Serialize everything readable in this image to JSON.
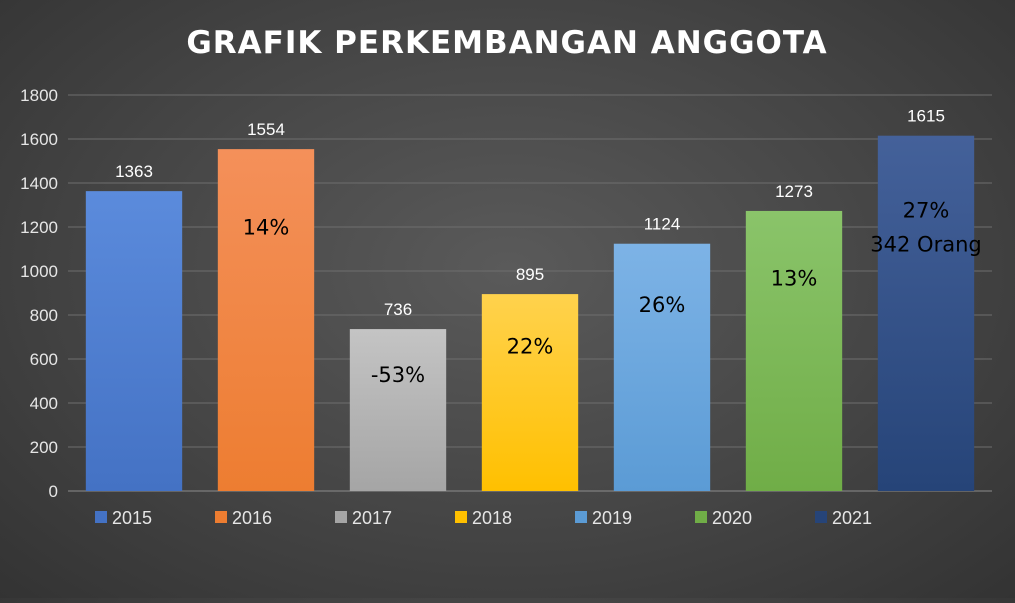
{
  "chart_data": {
    "type": "bar",
    "title": "GRAFIK PERKEMBANGAN ANGGOTA",
    "xlabel": "",
    "ylabel": "",
    "ylim": [
      0,
      1800
    ],
    "y_ticks": [
      0,
      200,
      400,
      600,
      800,
      1000,
      1200,
      1400,
      1600,
      1800
    ],
    "grid": true,
    "legend_position": "bottom",
    "categories": [
      "2015",
      "2016",
      "2017",
      "2018",
      "2019",
      "2020",
      "2021"
    ],
    "values": [
      1363,
      1554,
      736,
      895,
      1124,
      1273,
      1615
    ],
    "data_labels": [
      "1363",
      "1554",
      "736",
      "895",
      "1124",
      "1273",
      "1615"
    ],
    "inner_labels": [
      [],
      [
        "14%"
      ],
      [
        "-53%"
      ],
      [
        "22%"
      ],
      [
        "26%"
      ],
      [
        "13%"
      ],
      [
        "27%",
        "342 Orang"
      ]
    ],
    "colors": [
      "#4472C4",
      "#ED7D31",
      "#A5A5A5",
      "#FFC000",
      "#5B9BD5",
      "#70AD47",
      "#264478"
    ],
    "colors_light": [
      "#5B8BDC",
      "#F4905A",
      "#C4C4C4",
      "#FFD24D",
      "#7DB3E6",
      "#8AC46A",
      "#44619A"
    ],
    "text_color": "#FFFFFF",
    "axis_text_color": "#E6E6E6",
    "inner_text_color": "#000000",
    "gridline_color": "#6E6E6E"
  }
}
